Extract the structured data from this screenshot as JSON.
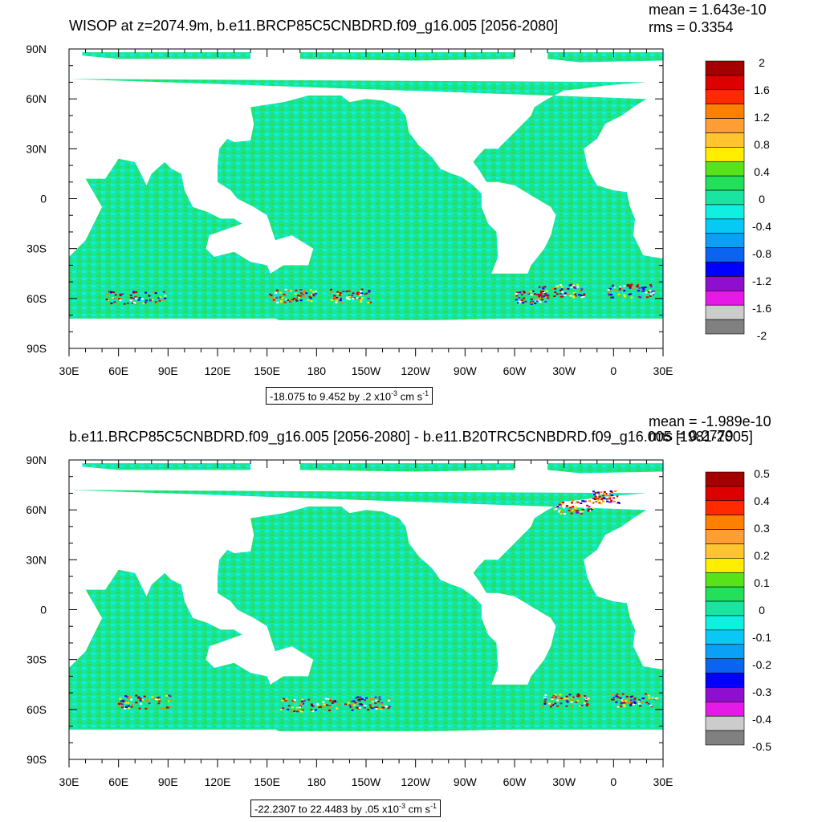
{
  "panels": [
    {
      "title": "WISOP at z=2074.9m, b.e11.BRCP85C5CNBDRD.f09_g16.005 [2056-2080]",
      "mean": "mean = 1.643e-10",
      "rms": "rms = 0.3354",
      "range": {
        "text": "-18.075 to 9.452 by .2 x10",
        "exp": "-3",
        "unit": " cm s",
        "unit_exp": "-1"
      },
      "colorbar": {
        "labels": [
          "2",
          "1.6",
          "1.2",
          "0.8",
          "0.4",
          "0",
          "-0.4",
          "-0.8",
          "-1.2",
          "-1.6",
          "-2"
        ],
        "colors": [
          "#a50000",
          "#dc0000",
          "#ff2a00",
          "#ff8000",
          "#ff9f33",
          "#ffc430",
          "#ffee00",
          "#58e21a",
          "#22e05a",
          "#19e5a0",
          "#10f0e0",
          "#08c8f5",
          "#0aa0f5",
          "#0a64f0",
          "#0000ff",
          "#8f0fcf",
          "#e61ae6",
          "#cccccc",
          "#808080"
        ]
      },
      "map_colors": {
        "base": "#19e5a0",
        "alt": "#22e05a",
        "alt2": "#10f0e0"
      },
      "chart_data": {
        "type": "heatmap",
        "title": "WISOP at z=2074.9m, b.e11.BRCP85C5CNBDRD.f09_g16.005 [2056-2080]",
        "xticks": [
          "30E",
          "60E",
          "90E",
          "120E",
          "150E",
          "180",
          "150W",
          "120W",
          "90W",
          "60W",
          "30W",
          "0",
          "30E"
        ],
        "yticks": [
          "90N",
          "60N",
          "30N",
          "0",
          "30S",
          "60S",
          "90S"
        ],
        "value_range": [
          -18.075,
          9.452
        ],
        "contour_interval": 0.2,
        "units": "x10^-3 cm s^-1",
        "mean": 1.643e-10,
        "rms": 0.3354,
        "colorbar_levels": [
          2,
          1.6,
          1.2,
          0.8,
          0.4,
          0,
          -0.4,
          -0.8,
          -1.2,
          -1.6,
          -2
        ]
      }
    },
    {
      "title": "b.e11.BRCP85C5CNBDRD.f09_g16.005 [2056-2080] - b.e11.B20TRC5CNBDRD.f09_g16.005 [1981-2005]",
      "mean": "mean = -1.989e-10",
      "rms": "rms = 0.2779",
      "range": {
        "text": "-22.2307 to 22.4483 by .05 x10",
        "exp": "-3",
        "unit": " cm s",
        "unit_exp": "-1"
      },
      "colorbar": {
        "labels": [
          "0.5",
          "0.4",
          "0.3",
          "0.2",
          "0.1",
          "0",
          "-0.1",
          "-0.2",
          "-0.3",
          "-0.4",
          "-0.5"
        ],
        "colors": [
          "#a50000",
          "#dc0000",
          "#ff2a00",
          "#ff8000",
          "#ff9f33",
          "#ffc430",
          "#ffee00",
          "#58e21a",
          "#22e05a",
          "#19e5a0",
          "#10f0e0",
          "#08c8f5",
          "#0aa0f5",
          "#0a64f0",
          "#0000ff",
          "#8f0fcf",
          "#e61ae6",
          "#cccccc",
          "#808080"
        ]
      },
      "map_colors": {
        "base": "#19e5a0",
        "alt": "#22e05a",
        "alt2": "#10f0e0"
      },
      "chart_data": {
        "type": "heatmap",
        "title": "b.e11.BRCP85C5CNBDRD.f09_g16.005 [2056-2080] - b.e11.B20TRC5CNBDRD.f09_g16.005 [1981-2005]",
        "xticks": [
          "30E",
          "60E",
          "90E",
          "120E",
          "150E",
          "180",
          "150W",
          "120W",
          "90W",
          "60W",
          "30W",
          "0",
          "30E"
        ],
        "yticks": [
          "90N",
          "60N",
          "30N",
          "0",
          "30S",
          "60S",
          "90S"
        ],
        "value_range": [
          -22.2307,
          22.4483
        ],
        "contour_interval": 0.05,
        "units": "x10^-3 cm s^-1",
        "mean": -1.989e-10,
        "rms": 0.2779,
        "colorbar_levels": [
          0.5,
          0.4,
          0.3,
          0.2,
          0.1,
          0,
          -0.1,
          -0.2,
          -0.3,
          -0.4,
          -0.5
        ]
      }
    }
  ]
}
